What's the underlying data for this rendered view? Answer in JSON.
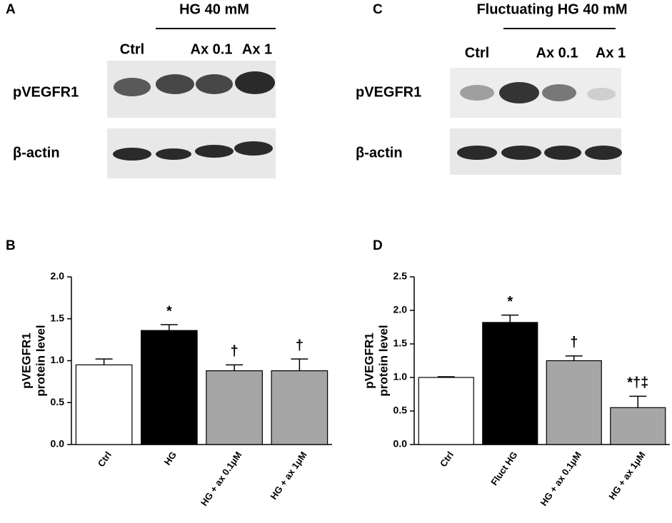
{
  "blots": [
    {
      "panel": "A",
      "header": "HG 40 mM",
      "lanes": [
        "Ctrl",
        "Ax 0.1",
        "Ax 1"
      ],
      "rows": [
        "pVEGFR1",
        "β-actin"
      ]
    },
    {
      "panel": "C",
      "header": "Fluctuating HG 40 mM",
      "lanes": [
        "Ctrl",
        "Ax 0.1",
        "Ax 1"
      ],
      "rows": [
        "pVEGFR1",
        "β-actin"
      ]
    }
  ],
  "chart_data": [
    {
      "type": "bar",
      "panel": "B",
      "ylabel": [
        "pVEGFR1",
        "protein level"
      ],
      "categories": [
        "Ctrl",
        "HG",
        "HG + ax 0.1μM",
        "HG + ax 1μM"
      ],
      "values": [
        0.95,
        1.36,
        0.88,
        0.88
      ],
      "errors": [
        0.07,
        0.07,
        0.07,
        0.14
      ],
      "colors": [
        "#ffffff",
        "#000000",
        "#a6a6a6",
        "#a6a6a6"
      ],
      "annotations": [
        null,
        "*",
        "†",
        "†"
      ],
      "ylim": [
        0,
        2
      ],
      "yticks": [
        {
          "value": 0,
          "label": "0.0"
        },
        {
          "value": 0.5,
          "label": "0.5"
        },
        {
          "value": 1,
          "label": "1.0"
        },
        {
          "value": 1.5,
          "label": "1.5"
        },
        {
          "value": 2,
          "label": "2.0"
        }
      ]
    },
    {
      "type": "bar",
      "panel": "D",
      "ylabel": [
        "pVEGFR1",
        "protein level"
      ],
      "categories": [
        "Ctrl",
        "Fluct HG",
        "HG + ax 0.1μM",
        "HG + ax 1μM"
      ],
      "values": [
        1.0,
        1.82,
        1.25,
        0.55
      ],
      "errors": [
        0.01,
        0.11,
        0.07,
        0.17
      ],
      "colors": [
        "#ffffff",
        "#000000",
        "#a6a6a6",
        "#a6a6a6"
      ],
      "annotations": [
        null,
        "*",
        "†",
        "*†‡"
      ],
      "ylim": [
        0,
        2.5
      ],
      "yticks": [
        {
          "value": 0,
          "label": "0.0"
        },
        {
          "value": 0.5,
          "label": "0.5"
        },
        {
          "value": 1,
          "label": "1.0"
        },
        {
          "value": 1.5,
          "label": "1.5"
        },
        {
          "value": 2,
          "label": "2.0"
        },
        {
          "value": 2.5,
          "label": "2.5"
        }
      ]
    }
  ]
}
